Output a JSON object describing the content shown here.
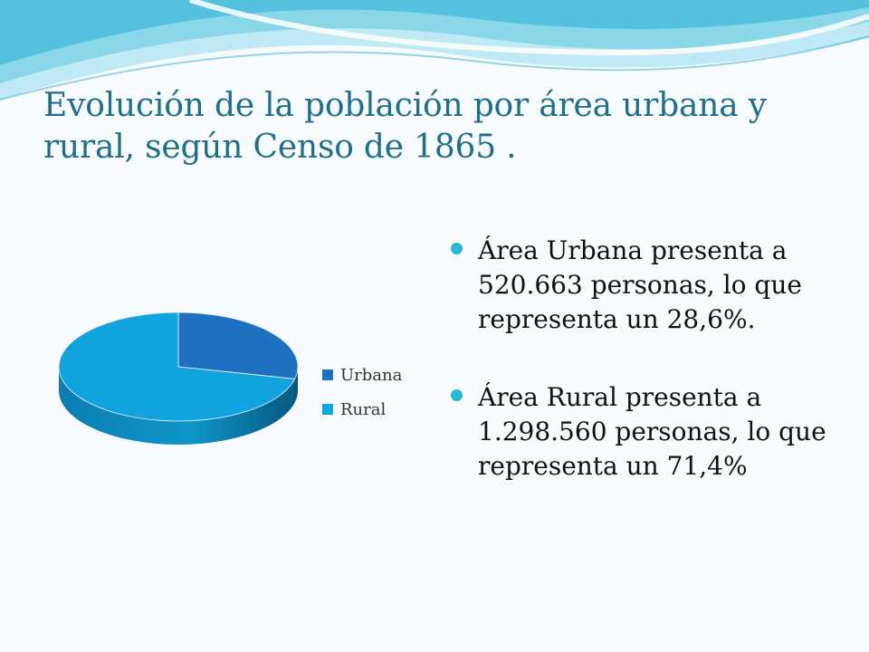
{
  "slide": {
    "title": "Evolución de la población por área urbana y rural, según Censo de 1865 ."
  },
  "bullets": [
    {
      "text": "Área Urbana presenta a 520.663 personas, lo que representa un 28,6%."
    },
    {
      "text": "Área Rural presenta a 1.298.560 personas, lo que representa un 71,4%"
    }
  ],
  "chart_data": {
    "type": "pie",
    "categories": [
      "Urbana",
      "Rural"
    ],
    "values": [
      28.6,
      71.4
    ],
    "population": [
      520663,
      1298560
    ],
    "colors": [
      "#1f70c1",
      "#11a3dd"
    ],
    "legend_position": "right"
  },
  "theme": {
    "title_color": "#1f6f8b",
    "bullet_color": "#28b8d8",
    "background": "#f7fbfd"
  }
}
